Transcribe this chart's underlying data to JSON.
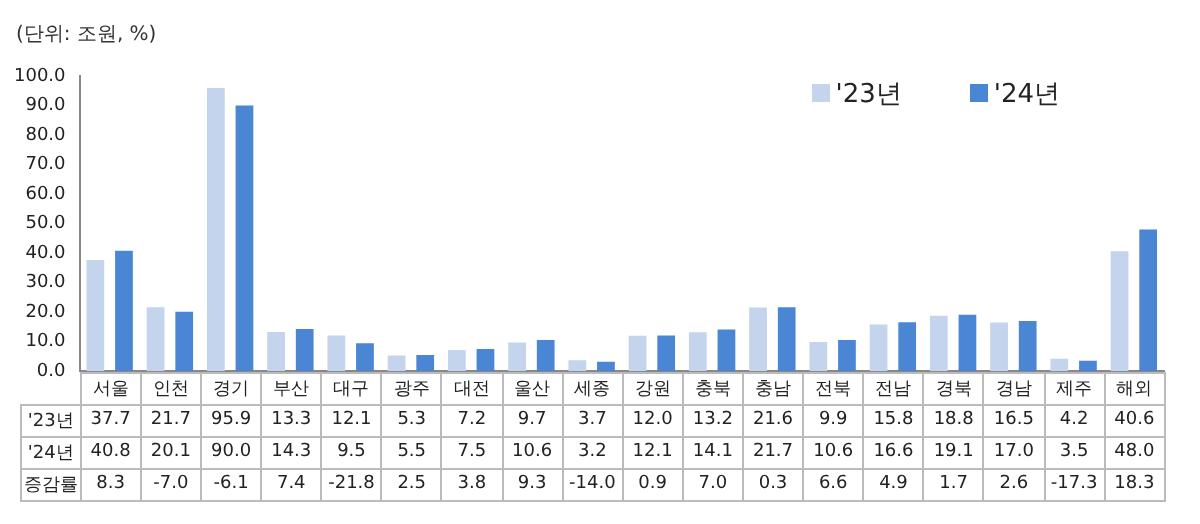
{
  "chart_data": {
    "type": "bar",
    "ylabel": "(단위: 조원, %)",
    "categories": [
      "서울",
      "인천",
      "경기",
      "부산",
      "대구",
      "광주",
      "대전",
      "울산",
      "세종",
      "강원",
      "충북",
      "충남",
      "전북",
      "전남",
      "경북",
      "경남",
      "제주",
      "해외"
    ],
    "series": [
      {
        "name": "'23년",
        "color": "#c3d4ec",
        "values": [
          37.7,
          21.7,
          95.9,
          13.3,
          12.1,
          5.3,
          7.2,
          9.7,
          3.7,
          12.0,
          13.2,
          21.6,
          9.9,
          15.8,
          18.8,
          16.5,
          4.2,
          40.6
        ],
        "value_labels": [
          "37.7",
          "21.7",
          "95.9",
          "13.3",
          "12.1",
          "5.3",
          "7.2",
          "9.7",
          "3.7",
          "12.0",
          "13.2",
          "21.6",
          "9.9",
          "15.8",
          "18.8",
          "16.5",
          "4.2",
          "40.6"
        ]
      },
      {
        "name": "'24년",
        "color": "#4a86d4",
        "values": [
          40.8,
          20.1,
          90.0,
          14.3,
          9.5,
          5.5,
          7.5,
          10.6,
          3.2,
          12.1,
          14.1,
          21.7,
          10.6,
          16.6,
          19.1,
          17.0,
          3.5,
          48.0
        ],
        "value_labels": [
          "40.8",
          "20.1",
          "90.0",
          "14.3",
          "9.5",
          "5.5",
          "7.5",
          "10.6",
          "3.2",
          "12.1",
          "14.1",
          "21.7",
          "10.6",
          "16.6",
          "19.1",
          "17.0",
          "3.5",
          "48.0"
        ]
      }
    ],
    "annotations": [
      "증감률",
      "8.3",
      "-7.0",
      "-6.1",
      "7.4",
      "-21.8",
      "2.5",
      "3.8",
      "9.3",
      "-14.0",
      "0.9",
      "7.0",
      "0.3",
      "6.6",
      "4.9",
      "1.7",
      "2.6",
      "-17.3",
      "18.3"
    ],
    "ylim": [
      0,
      100
    ],
    "yticks": [
      {
        "value": 0,
        "label": "0.0"
      },
      {
        "value": 10,
        "label": "10.0"
      },
      {
        "value": 20,
        "label": "20.0"
      },
      {
        "value": 30,
        "label": "30.0"
      },
      {
        "value": 40,
        "label": "40.0"
      },
      {
        "value": 50,
        "label": "50.0"
      },
      {
        "value": 60,
        "label": "60.0"
      },
      {
        "value": 70,
        "label": "70.0"
      },
      {
        "value": 80,
        "label": "80.0"
      },
      {
        "value": 90,
        "label": "90.0"
      },
      {
        "value": 100,
        "label": "100.0"
      }
    ],
    "grid": false,
    "legend": "top right"
  }
}
